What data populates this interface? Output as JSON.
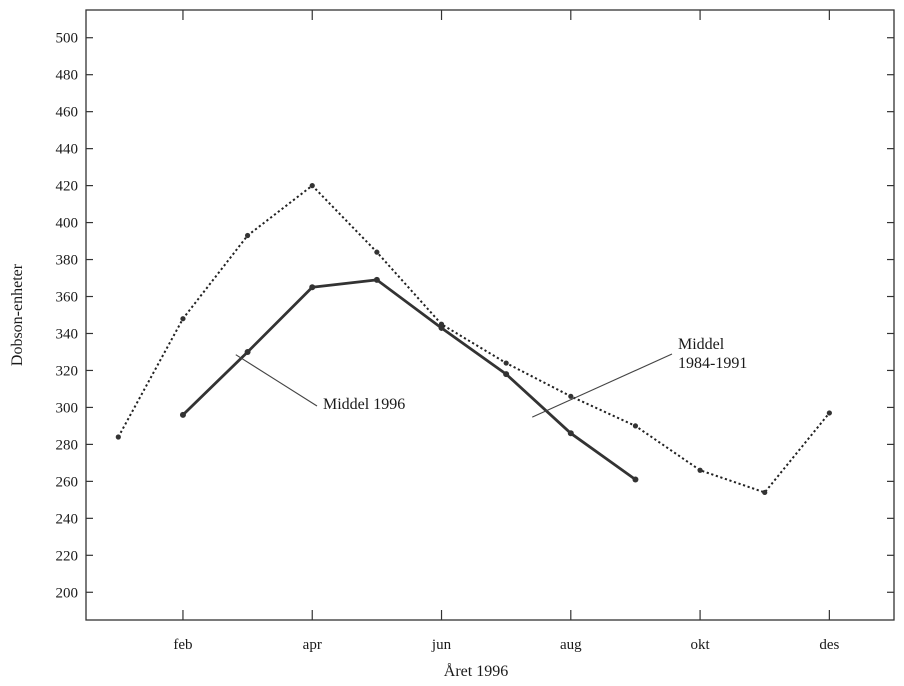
{
  "chart_data": {
    "type": "line",
    "title": "",
    "xlabel": "Året 1996",
    "ylabel": "Dobson-enheter",
    "ylim": [
      185,
      515
    ],
    "yticks": [
      200,
      220,
      240,
      260,
      280,
      300,
      320,
      340,
      360,
      380,
      400,
      420,
      440,
      460,
      480,
      500
    ],
    "xlim": [
      0.5,
      13.0
    ],
    "xticks": [
      {
        "x": 2,
        "label": "feb"
      },
      {
        "x": 4,
        "label": "apr"
      },
      {
        "x": 6,
        "label": "jun"
      },
      {
        "x": 8,
        "label": "aug"
      },
      {
        "x": 10,
        "label": "okt"
      },
      {
        "x": 12,
        "label": "des"
      }
    ],
    "grid": false,
    "series": [
      {
        "name": "Middel 1996",
        "style": "solid",
        "color": "#333333",
        "x": [
          2,
          3,
          4,
          5,
          6,
          7,
          8,
          9
        ],
        "y": [
          296,
          330,
          365,
          369,
          343,
          318,
          286,
          261
        ]
      },
      {
        "name": "Middel 1984-1991",
        "style": "dotted",
        "color": "#222222",
        "x": [
          1,
          2,
          3,
          4,
          5,
          6,
          7,
          8,
          9,
          10,
          11,
          12
        ],
        "y": [
          284,
          348,
          393,
          420,
          384,
          345,
          324,
          306,
          290,
          266,
          254,
          297
        ]
      }
    ],
    "annotations": [
      {
        "lines": [
          "Middel 1996"
        ],
        "series": 0,
        "target": {
          "x": 3.9,
          "y": 328
        }
      },
      {
        "lines": [
          "Middel",
          "1984-1991"
        ],
        "series": 1,
        "target": {
          "x": 7.45,
          "y": 298
        }
      }
    ]
  }
}
